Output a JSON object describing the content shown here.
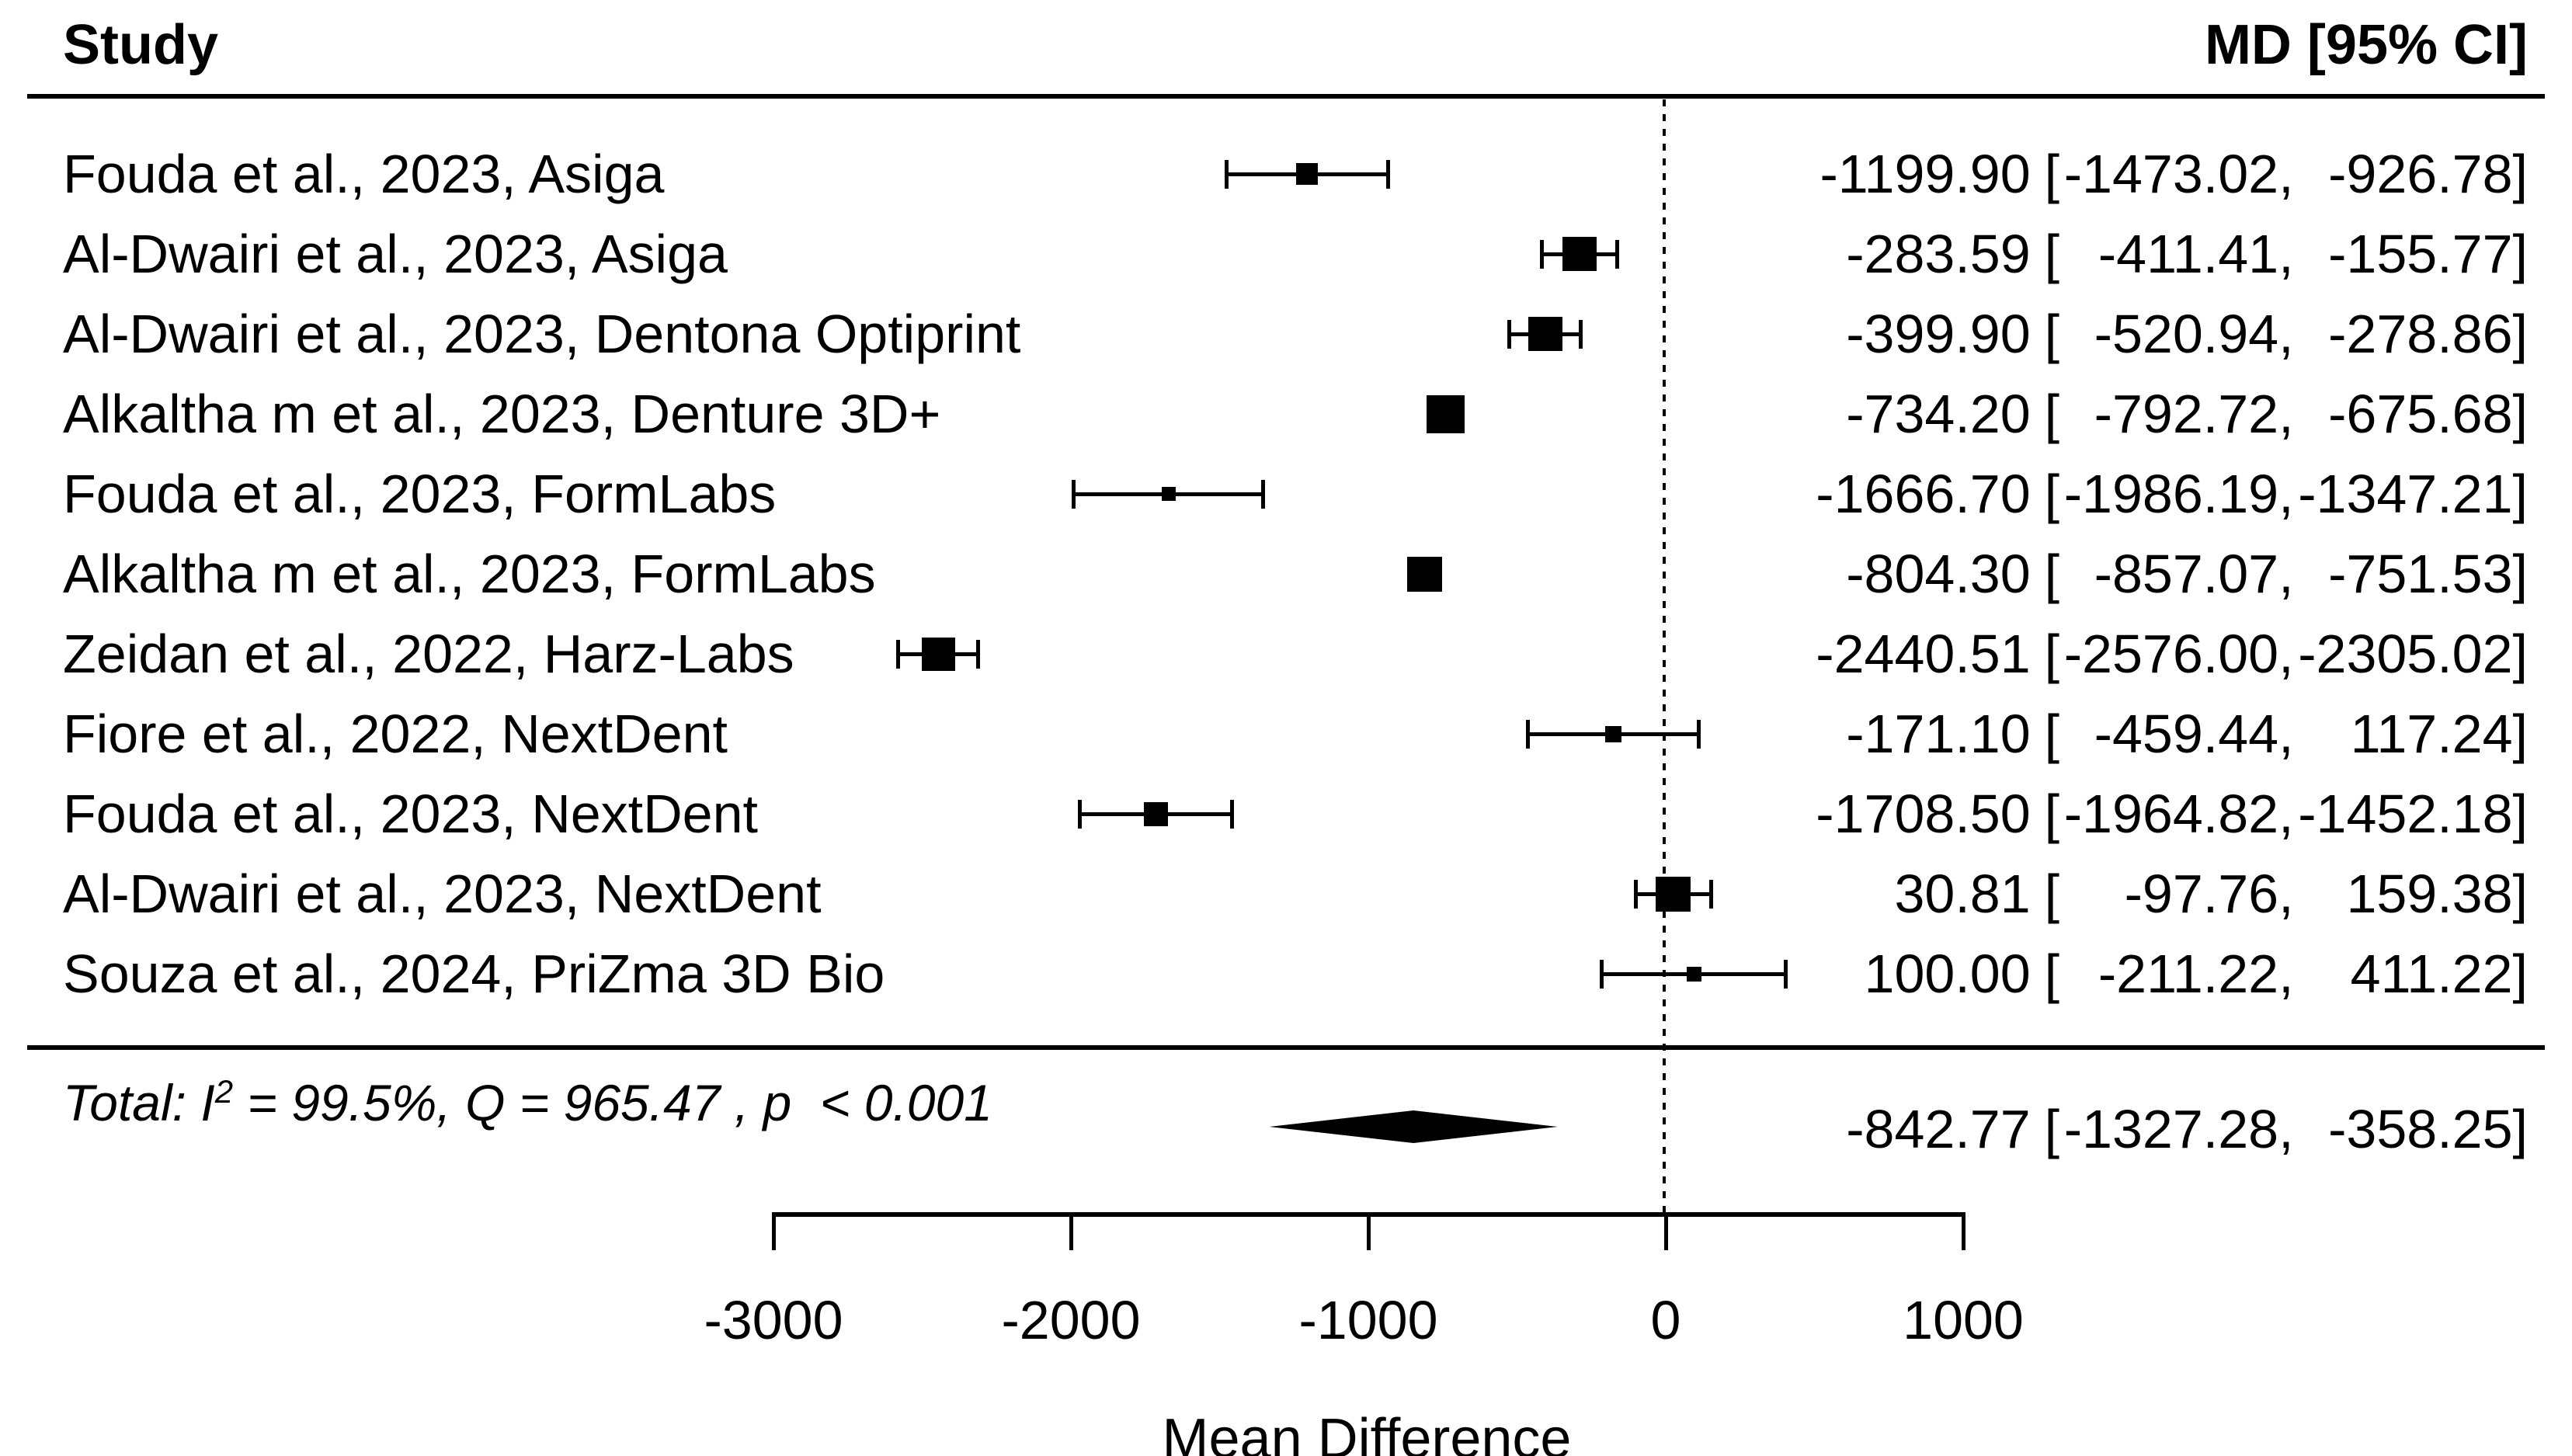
{
  "header": {
    "study_col": "Study",
    "effect_col": "MD [95% CI]"
  },
  "format": {
    "open_bracket": "[",
    "close_bracket": "]",
    "separator": ","
  },
  "chart_data": {
    "type": "forest",
    "effect_measure": "MD",
    "x_axis": {
      "label": "Mean Difference",
      "ticks": [
        -3000,
        -2000,
        -1000,
        0,
        1000
      ],
      "tick_labels": [
        "-3000",
        "-2000",
        "-1000",
        "0",
        "1000"
      ],
      "range": [
        -3000,
        1000
      ],
      "reference_line": 0,
      "grid": false
    },
    "studies": [
      {
        "label": "Fouda et al., 2023, Asiga",
        "md": -1199.9,
        "ci_low": -1473.02,
        "ci_high": -926.78,
        "md_text": "-1199.90",
        "lo_text": "-1473.02",
        "hi_text": "-926.78",
        "marker_size_px": 28
      },
      {
        "label": "Al-Dwairi et al., 2023, Asiga",
        "md": -283.59,
        "ci_low": -411.41,
        "ci_high": -155.77,
        "md_text": "-283.59",
        "lo_text": "-411.41",
        "hi_text": "-155.77",
        "marker_size_px": 44
      },
      {
        "label": "Al-Dwairi et al., 2023, Dentona Optiprint",
        "md": -399.9,
        "ci_low": -520.94,
        "ci_high": -278.86,
        "md_text": "-399.90",
        "lo_text": "-520.94",
        "hi_text": "-278.86",
        "marker_size_px": 44
      },
      {
        "label": "Alkaltha m et al., 2023, Denture 3D+",
        "md": -734.2,
        "ci_low": -792.72,
        "ci_high": -675.68,
        "md_text": "-734.20",
        "lo_text": "-792.72",
        "hi_text": "-675.68",
        "marker_size_px": 49
      },
      {
        "label": "Fouda et al., 2023, FormLabs",
        "md": -1666.7,
        "ci_low": -1986.19,
        "ci_high": -1347.21,
        "md_text": "-1666.70",
        "lo_text": "-1986.19",
        "hi_text": "-1347.21",
        "marker_size_px": 18
      },
      {
        "label": "Alkaltha m et al., 2023, FormLabs",
        "md": -804.3,
        "ci_low": -857.07,
        "ci_high": -751.53,
        "md_text": "-804.30",
        "lo_text": "-857.07",
        "hi_text": "-751.53",
        "marker_size_px": 45
      },
      {
        "label": "Zeidan et al., 2022, Harz-Labs",
        "md": -2440.51,
        "ci_low": -2576.0,
        "ci_high": -2305.02,
        "md_text": "-2440.51",
        "lo_text": "-2576.00",
        "hi_text": "-2305.02",
        "marker_size_px": 43
      },
      {
        "label": "Fiore et al., 2022, NextDent",
        "md": -171.1,
        "ci_low": -459.44,
        "ci_high": 117.24,
        "md_text": "-171.10",
        "lo_text": "-459.44",
        "hi_text": "117.24",
        "marker_size_px": 21
      },
      {
        "label": "Fouda et al., 2023, NextDent",
        "md": -1708.5,
        "ci_low": -1964.82,
        "ci_high": -1452.18,
        "md_text": "-1708.50",
        "lo_text": "-1964.82",
        "hi_text": "-1452.18",
        "marker_size_px": 31
      },
      {
        "label": "Al-Dwairi et al., 2023, NextDent",
        "md": 30.81,
        "ci_low": -97.76,
        "ci_high": 159.38,
        "md_text": "30.81",
        "lo_text": "-97.76",
        "hi_text": "159.38",
        "marker_size_px": 45
      },
      {
        "label": "Souza et al., 2024, PriZma 3D Bio",
        "md": 100.0,
        "ci_low": -211.22,
        "ci_high": 411.22,
        "md_text": "100.00",
        "lo_text": "-211.22",
        "hi_text": "411.22",
        "marker_size_px": 19
      }
    ],
    "overall": {
      "md": -842.77,
      "ci_low": -1327.28,
      "ci_high": -358.25,
      "md_text": "-842.77",
      "lo_text": "-1327.28",
      "hi_text": "-358.25",
      "heterogeneity": {
        "prefix": "Total: I",
        "sup": "2",
        "rest": " = 99.5%, Q = 965.47 , p  < 0.001",
        "i2": "99.5%",
        "q": "965.47",
        "p": "< 0.001"
      }
    }
  }
}
